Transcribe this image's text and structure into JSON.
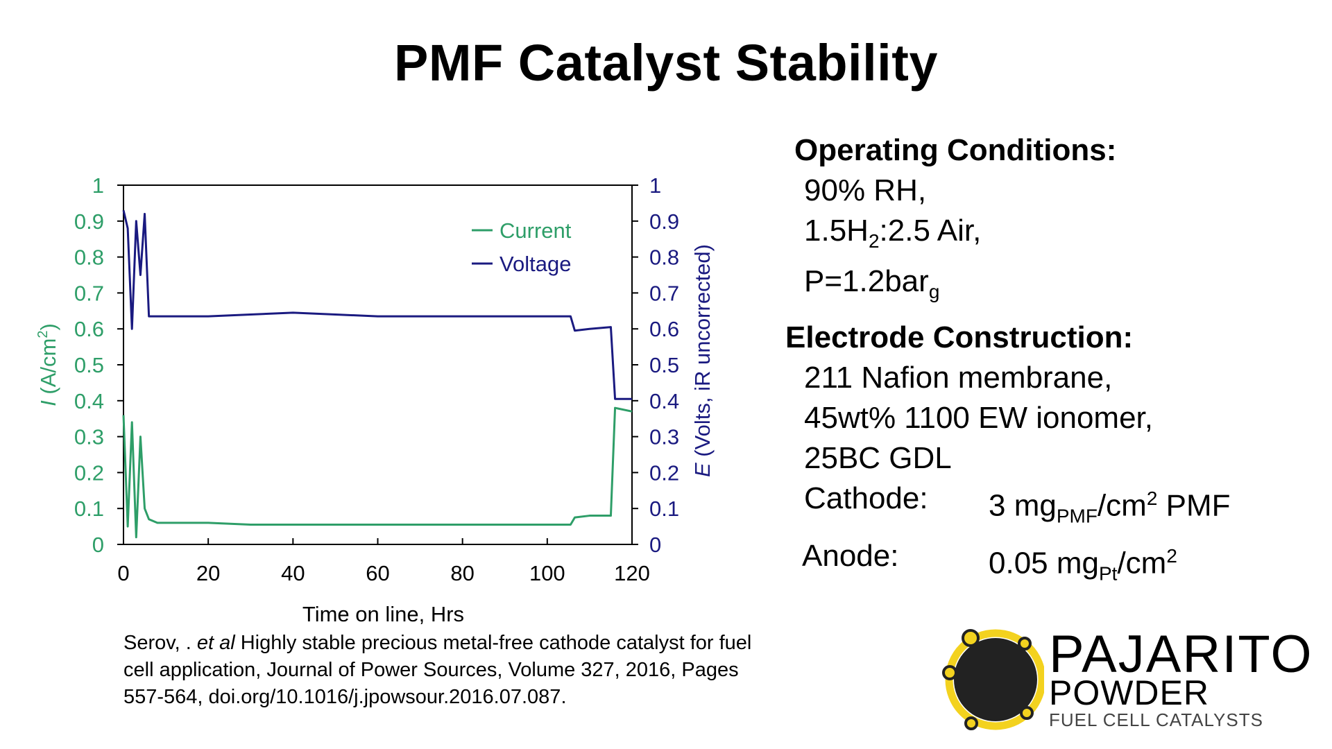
{
  "title": "PMF Catalyst Stability",
  "chart_data": {
    "type": "line",
    "x": [
      0,
      1,
      2,
      3,
      4,
      5,
      6,
      8,
      10,
      20,
      30,
      40,
      50,
      60,
      70,
      80,
      90,
      100,
      105.5,
      106.5,
      110,
      115,
      116,
      120
    ],
    "xlabel": "Time on line, Hrs",
    "ylabel_left_var": "I",
    "ylabel_left_unit": "(A/cm",
    "ylabel_left_exp": "2",
    "ylabel_left_close": ")",
    "ylabel_right_var": "E",
    "ylabel_right_rest": "(Volts, iR uncorrected)",
    "xlim": [
      0,
      120
    ],
    "ylim_left": [
      0,
      1
    ],
    "ylim_right": [
      0,
      1
    ],
    "x_ticks": [
      "0",
      "20",
      "40",
      "60",
      "80",
      "100",
      "120"
    ],
    "y_ticks": [
      "0",
      "0.1",
      "0.2",
      "0.3",
      "0.4",
      "0.5",
      "0.6",
      "0.7",
      "0.8",
      "0.9",
      "1"
    ],
    "series": [
      {
        "name": "Current",
        "axis": "left",
        "color": "#2e9e68",
        "values": [
          0.36,
          0.05,
          0.34,
          0.02,
          0.3,
          0.1,
          0.07,
          0.06,
          0.06,
          0.06,
          0.055,
          0.055,
          0.055,
          0.055,
          0.055,
          0.055,
          0.055,
          0.055,
          0.055,
          0.075,
          0.08,
          0.08,
          0.38,
          0.37
        ]
      },
      {
        "name": "Voltage",
        "axis": "right",
        "color": "#1a1a80",
        "values": [
          0.93,
          0.88,
          0.6,
          0.9,
          0.75,
          0.92,
          0.635,
          0.635,
          0.635,
          0.635,
          0.64,
          0.645,
          0.64,
          0.635,
          0.635,
          0.635,
          0.635,
          0.635,
          0.635,
          0.595,
          0.6,
          0.605,
          0.405,
          0.405
        ]
      }
    ],
    "legend_position": "top-right",
    "grid": false
  },
  "citation": {
    "author": "Serov, . ",
    "etal": "et al",
    "text": " Highly stable precious metal-free cathode catalyst for fuel cell application, Journal of Power Sources, Volume 327, 2016, Pages 557-564, doi.org/10.1016/j.jpowsour.2016.07.087."
  },
  "operating": {
    "header": "Operating Conditions:",
    "rh": "90% RH,",
    "gas_a": "1.5H",
    "gas_sub": "2",
    "gas_b": ":2.5 Air,",
    "p_a": "P=1.2bar",
    "p_sub": "g"
  },
  "electrode": {
    "header": "Electrode Construction:",
    "membrane": "211 Nafion membrane,",
    "ionomer": "45wt% 1100 EW ionomer,",
    "gdl": "25BC GDL",
    "cathode_label": "Cathode:",
    "cathode_a": "3 mg",
    "cathode_sub": "PMF",
    "cathode_b": "/cm",
    "cathode_sup": "2",
    "cathode_c": " PMF",
    "anode_label": "Anode:",
    "anode_a": "0.05 mg",
    "anode_sub": "Pt",
    "anode_b": "/cm",
    "anode_sup": "2"
  },
  "logo": {
    "name1": "PAJARITO",
    "name2": "POWDER",
    "tagline": "FUEL CELL CATALYSTS"
  },
  "colors": {
    "current": "#2e9e68",
    "voltage": "#1a1a80",
    "axis_left_text": "#2e9e68",
    "axis_right_text": "#1a1a80",
    "logo_ring": "#f3d21f"
  }
}
